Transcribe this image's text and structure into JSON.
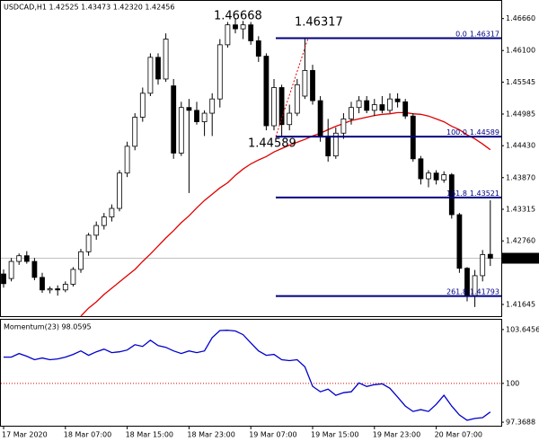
{
  "chart_data": {
    "type": "candlestick",
    "title": "USDCAD,H1  1.42525 1.43473 1.42320 1.42456",
    "categories": [
      "17 Mar 2020",
      null,
      null,
      null,
      null,
      null,
      null,
      null,
      "18 Mar 07:00",
      null,
      null,
      null,
      null,
      null,
      null,
      null,
      "18 Mar 15:00",
      null,
      null,
      null,
      null,
      null,
      null,
      null,
      "18 Mar 23:00",
      null,
      null,
      null,
      null,
      null,
      null,
      null,
      "19 Mar 07:00",
      null,
      null,
      null,
      null,
      null,
      null,
      null,
      "19 Mar 15:00",
      null,
      null,
      null,
      null,
      null,
      null,
      null,
      "19 Mar 23:00",
      null,
      null,
      null,
      null,
      null,
      null,
      null,
      "20 Mar 07:00",
      null,
      null,
      null,
      null,
      null,
      null,
      null
    ],
    "open": [
      1.4218,
      1.421,
      1.424,
      1.425,
      1.424,
      1.4212,
      1.419,
      1.4192,
      1.419,
      1.42,
      1.4226,
      1.4257,
      1.4286,
      1.4303,
      1.4318,
      1.4333,
      1.4395,
      1.4442,
      1.4493,
      1.4535,
      1.4598,
      1.456,
      1.4548,
      1.443,
      1.451,
      1.4505,
      1.4485,
      1.45,
      1.4525,
      1.462,
      1.4655,
      1.4648,
      1.4655,
      1.4627,
      1.46,
      1.4478,
      1.4545,
      1.448,
      1.45,
      1.453,
      1.4575,
      1.4522,
      1.446,
      1.4425,
      1.4465,
      1.449,
      1.451,
      1.4522,
      1.4505,
      1.4515,
      1.4505,
      1.4525,
      1.452,
      1.4495,
      1.442,
      1.4385,
      1.4395,
      1.4383,
      1.4392,
      1.4322,
      1.4228,
      1.418,
      1.4215,
      1.42525
    ],
    "high": [
      1.4226,
      1.4246,
      1.4254,
      1.4258,
      1.4246,
      1.422,
      1.4196,
      1.4198,
      1.4205,
      1.423,
      1.4262,
      1.429,
      1.431,
      1.4325,
      1.434,
      1.44,
      1.445,
      1.45,
      1.4545,
      1.4605,
      1.4605,
      1.464,
      1.456,
      1.452,
      1.4525,
      1.452,
      1.4505,
      1.4535,
      1.463,
      1.466,
      1.46668,
      1.4662,
      1.466,
      1.4635,
      1.4605,
      1.456,
      1.455,
      1.4515,
      1.456,
      1.46317,
      1.4585,
      1.453,
      1.449,
      1.4475,
      1.45,
      1.452,
      1.453,
      1.453,
      1.4525,
      1.453,
      1.4535,
      1.4535,
      1.4525,
      1.45,
      1.4425,
      1.44,
      1.44,
      1.4398,
      1.4395,
      1.4325,
      1.423,
      1.4225,
      1.426,
      1.43473
    ],
    "low": [
      1.4194,
      1.4205,
      1.4234,
      1.4236,
      1.4207,
      1.4185,
      1.4184,
      1.418,
      1.4186,
      1.4196,
      1.422,
      1.425,
      1.4278,
      1.4296,
      1.431,
      1.4328,
      1.4388,
      1.4435,
      1.4485,
      1.453,
      1.455,
      1.4555,
      1.442,
      1.4425,
      1.436,
      1.448,
      1.446,
      1.446,
      1.451,
      1.4615,
      1.464,
      1.463,
      1.462,
      1.459,
      1.447,
      1.447,
      1.44589,
      1.447,
      1.4495,
      1.4525,
      1.4515,
      1.445,
      1.4415,
      1.442,
      1.4455,
      1.448,
      1.45,
      1.45,
      1.4495,
      1.45,
      1.45,
      1.451,
      1.449,
      1.4415,
      1.4375,
      1.437,
      1.4375,
      1.4378,
      1.4315,
      1.422,
      1.417,
      1.416,
      1.4205,
      1.4232
    ],
    "close": [
      1.4201,
      1.424,
      1.425,
      1.424,
      1.4212,
      1.419,
      1.4192,
      1.419,
      1.42,
      1.4226,
      1.4257,
      1.4286,
      1.4303,
      1.4318,
      1.4333,
      1.4395,
      1.4442,
      1.4493,
      1.4535,
      1.4598,
      1.456,
      1.463,
      1.443,
      1.451,
      1.4505,
      1.4485,
      1.45,
      1.4525,
      1.462,
      1.4655,
      1.4648,
      1.4655,
      1.4627,
      1.46,
      1.4478,
      1.4545,
      1.448,
      1.45,
      1.455,
      1.4575,
      1.4522,
      1.446,
      1.4425,
      1.4465,
      1.449,
      1.451,
      1.4522,
      1.4505,
      1.4515,
      1.4505,
      1.4525,
      1.452,
      1.4495,
      1.442,
      1.4385,
      1.4395,
      1.4383,
      1.4392,
      1.4322,
      1.4228,
      1.418,
      1.4215,
      1.4252,
      1.42456
    ],
    "moving_average": {
      "color": "#e00000",
      "values": [
        null,
        null,
        null,
        null,
        null,
        null,
        null,
        null,
        null,
        null,
        1.4144,
        1.4158,
        1.4169,
        1.4182,
        1.4193,
        1.4204,
        1.4215,
        1.4226,
        1.424,
        1.4253,
        1.4267,
        1.4281,
        1.4294,
        1.4308,
        1.432,
        1.4334,
        1.4347,
        1.4358,
        1.4369,
        1.4378,
        1.4391,
        1.4402,
        1.4411,
        1.4418,
        1.4424,
        1.4432,
        1.4438,
        1.4444,
        1.4449,
        1.4454,
        1.446,
        1.4465,
        1.4471,
        1.4477,
        1.4482,
        1.4487,
        1.449,
        1.4493,
        1.4496,
        1.4498,
        1.4499,
        1.4501,
        1.4501,
        1.4499,
        1.4498,
        1.4495,
        1.449,
        1.4485,
        1.4477,
        1.4471,
        1.4462,
        1.4455,
        1.4446,
        1.4436
      ]
    },
    "ylim": [
      1.4144,
      1.4697
    ],
    "yticks": [
      {
        "value": 1.4666,
        "label": "1.46660"
      },
      {
        "value": 1.461,
        "label": "1.46100"
      },
      {
        "value": 1.45545,
        "label": "1.45545"
      },
      {
        "value": 1.44985,
        "label": "1.44985"
      },
      {
        "value": 1.4443,
        "label": "1.44430"
      },
      {
        "value": 1.4387,
        "label": "1.43870"
      },
      {
        "value": 1.43315,
        "label": "1.43315"
      },
      {
        "value": 1.4276,
        "label": "1.42760"
      },
      {
        "value": 1.41645,
        "label": "1.41645"
      }
    ],
    "fib_levels": [
      {
        "label": "0.0",
        "value": 1.46317
      },
      {
        "label": "100.0",
        "value": 1.44589
      },
      {
        "label": "161.8",
        "value": 1.43521
      },
      {
        "label": "261.8",
        "value": 1.41793
      }
    ],
    "swing_high": 1.46668,
    "fib_anchor": [
      1.44589,
      1.46317
    ],
    "momentum": {
      "title": "Momentum(23) 98.0595",
      "color": "#0000cc",
      "values": [
        101.78,
        101.78,
        102.02,
        101.84,
        101.6,
        101.72,
        101.6,
        101.66,
        101.78,
        101.96,
        102.2,
        101.9,
        102.14,
        102.32,
        102.08,
        102.14,
        102.26,
        102.62,
        102.5,
        102.92,
        102.56,
        102.44,
        102.2,
        102.02,
        102.2,
        102.08,
        102.2,
        103.1,
        103.58,
        103.6,
        103.55,
        103.3,
        102.74,
        102.2,
        101.9,
        101.96,
        101.6,
        101.54,
        101.6,
        101.12,
        99.8,
        99.43,
        99.61,
        99.19,
        99.37,
        99.43,
        100.03,
        99.79,
        99.91,
        99.97,
        99.67,
        99.07,
        98.46,
        98.1,
        98.22,
        98.1,
        98.58,
        99.19,
        98.46,
        97.86,
        97.5,
        97.62,
        97.68,
        98.0595
      ],
      "ylim": [
        97.13,
        104.31
      ],
      "yticks": [
        103.6456,
        100,
        97.3688
      ],
      "reference": 100
    }
  }
}
